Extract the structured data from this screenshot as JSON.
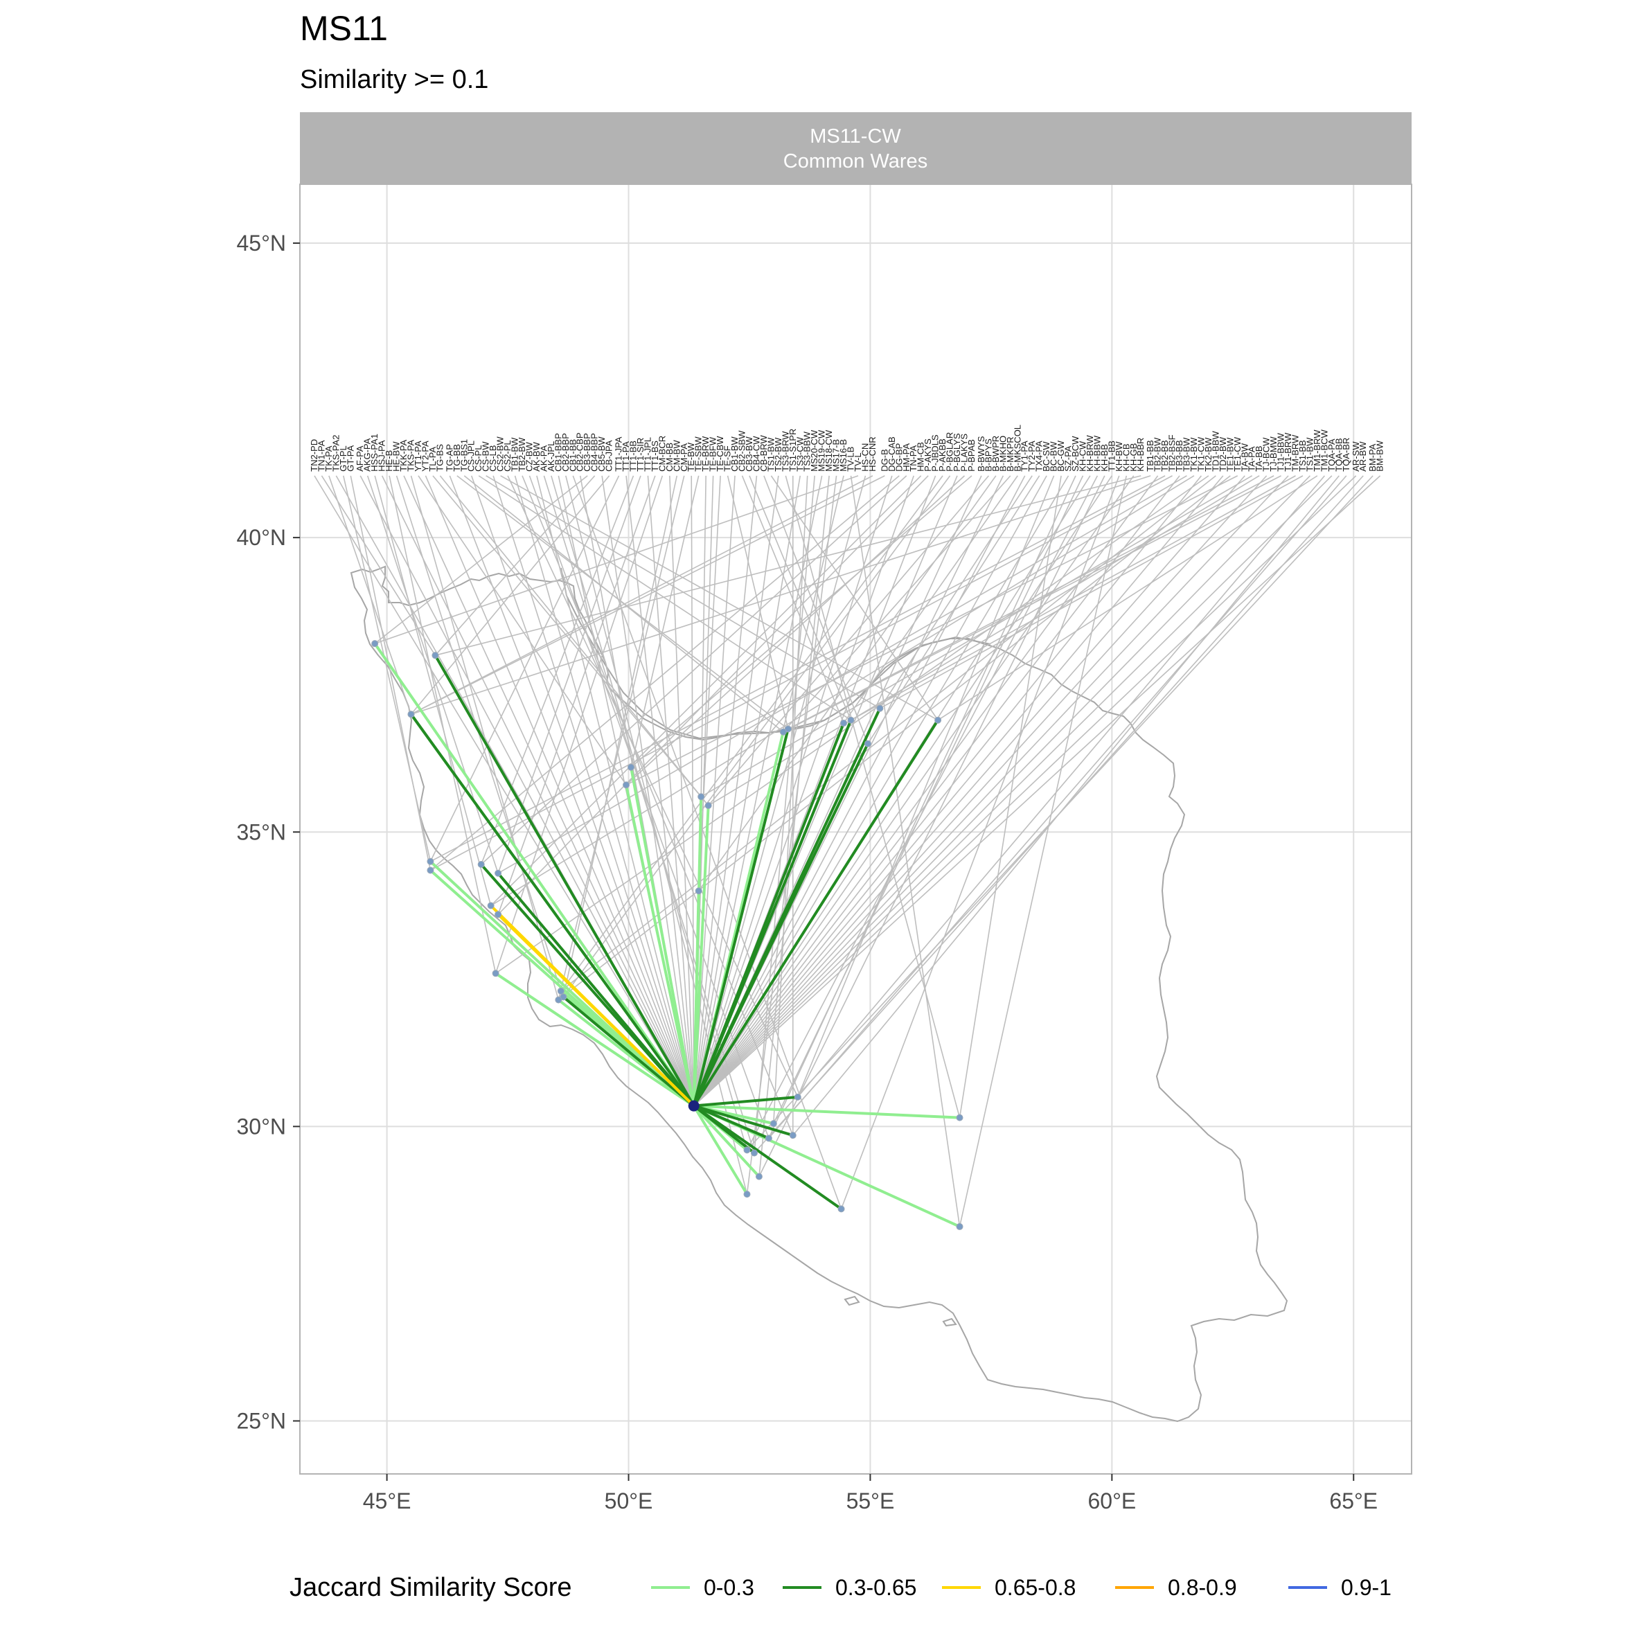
{
  "chart_data": {
    "type": "map",
    "title": "MS11",
    "subtitle": "Similarity >= 0.1",
    "facet": {
      "line1": "MS11-CW",
      "line2": "Common Wares"
    },
    "xlim": [
      43.2,
      66.2
    ],
    "ylim": [
      24.1,
      46.0
    ],
    "grid": true,
    "x_ticks": [
      {
        "value": 45,
        "label": "45°E"
      },
      {
        "value": 50,
        "label": "50°E"
      },
      {
        "value": 55,
        "label": "55°E"
      },
      {
        "value": 60,
        "label": "60°E"
      },
      {
        "value": 65,
        "label": "65°E"
      }
    ],
    "y_ticks": [
      {
        "value": 25,
        "label": "25°N"
      },
      {
        "value": 30,
        "label": "30°N"
      },
      {
        "value": 35,
        "label": "35°N"
      },
      {
        "value": 40,
        "label": "40°N"
      },
      {
        "value": 45,
        "label": "45°N"
      }
    ],
    "origin": {
      "lon": 51.35,
      "lat": 30.35,
      "color": "#1a237e"
    },
    "label_baseline_lat": 41.05,
    "legend": {
      "title": "Jaccard Similarity Score",
      "position": "bottom",
      "items": [
        {
          "label": "0-0.3",
          "color": "#90ee90"
        },
        {
          "label": "0.3-0.65",
          "color": "#228b22"
        },
        {
          "label": "0.65-0.8",
          "color": "#ffd700"
        },
        {
          "label": "0.8-0.9",
          "color": "#ffa500"
        },
        {
          "label": "0.9-1",
          "color": "#4169e1"
        }
      ]
    },
    "colors": {
      "0-0.3": "#90ee90",
      "0.3-0.65": "#228b22",
      "0.65-0.8": "#ffd700",
      "0.8-0.9": "#ffa500",
      "0.9-1": "#4169e1",
      "leader": "#bebebe",
      "border": "#a6a6a6",
      "strip": "#b3b3b3"
    },
    "links": [
      {
        "lon": 44.75,
        "lat": 38.2,
        "class": "0-0.3"
      },
      {
        "lon": 46.0,
        "lat": 38.0,
        "class": "0.3-0.65"
      },
      {
        "lon": 45.5,
        "lat": 37.0,
        "class": "0.3-0.65"
      },
      {
        "lon": 45.5,
        "lat": 37.0,
        "class": "0-0.3"
      },
      {
        "lon": 45.9,
        "lat": 34.5,
        "class": "0-0.3"
      },
      {
        "lon": 45.9,
        "lat": 34.35,
        "class": "0-0.3"
      },
      {
        "lon": 46.95,
        "lat": 34.45,
        "class": "0.3-0.65"
      },
      {
        "lon": 47.3,
        "lat": 34.3,
        "class": "0.3-0.65"
      },
      {
        "lon": 47.15,
        "lat": 33.75,
        "class": "0.65-0.8"
      },
      {
        "lon": 47.3,
        "lat": 33.6,
        "class": "0.65-0.8"
      },
      {
        "lon": 47.25,
        "lat": 32.6,
        "class": "0-0.3"
      },
      {
        "lon": 48.6,
        "lat": 32.3,
        "class": "0-0.3"
      },
      {
        "lon": 48.65,
        "lat": 32.2,
        "class": "0.3-0.65"
      },
      {
        "lon": 48.55,
        "lat": 32.15,
        "class": "0-0.3"
      },
      {
        "lon": 49.95,
        "lat": 35.8,
        "class": "0-0.3"
      },
      {
        "lon": 50.05,
        "lat": 36.1,
        "class": "0-0.3"
      },
      {
        "lon": 51.5,
        "lat": 35.6,
        "class": "0-0.3"
      },
      {
        "lon": 51.65,
        "lat": 35.45,
        "class": "0-0.3"
      },
      {
        "lon": 51.45,
        "lat": 34.0,
        "class": "0-0.3"
      },
      {
        "lon": 53.3,
        "lat": 36.75,
        "class": "0.3-0.65"
      },
      {
        "lon": 53.2,
        "lat": 36.7,
        "class": "0-0.3"
      },
      {
        "lon": 54.45,
        "lat": 36.85,
        "class": "0.3-0.65"
      },
      {
        "lon": 54.6,
        "lat": 36.9,
        "class": "0.3-0.65"
      },
      {
        "lon": 55.2,
        "lat": 37.1,
        "class": "0.3-0.65"
      },
      {
        "lon": 54.95,
        "lat": 36.5,
        "class": "0.3-0.65"
      },
      {
        "lon": 56.4,
        "lat": 36.9,
        "class": "0.3-0.65"
      },
      {
        "lon": 53.5,
        "lat": 30.5,
        "class": "0.3-0.65"
      },
      {
        "lon": 56.85,
        "lat": 30.15,
        "class": "0-0.3"
      },
      {
        "lon": 53.4,
        "lat": 29.85,
        "class": "0.3-0.65"
      },
      {
        "lon": 52.9,
        "lat": 29.8,
        "class": "0.3-0.65"
      },
      {
        "lon": 53.0,
        "lat": 30.05,
        "class": "0-0.3"
      },
      {
        "lon": 52.6,
        "lat": 29.55,
        "class": "0.3-0.65"
      },
      {
        "lon": 52.45,
        "lat": 29.6,
        "class": "0-0.3"
      },
      {
        "lon": 52.7,
        "lat": 29.15,
        "class": "0-0.3"
      },
      {
        "lon": 52.45,
        "lat": 28.85,
        "class": "0-0.3"
      },
      {
        "lon": 54.4,
        "lat": 28.6,
        "class": "0.3-0.65"
      },
      {
        "lon": 56.85,
        "lat": 28.3,
        "class": "0-0.3"
      }
    ],
    "site_labels": [
      {
        "text": "TN2-PD",
        "lon": 43.5
      },
      {
        "text": "TN1-PA",
        "lon": 43.65
      },
      {
        "text": "TK-PA",
        "lon": 43.8
      },
      {
        "text": "TKS-PA2",
        "lon": 43.95
      },
      {
        "text": "GT-PL",
        "lon": 44.1
      },
      {
        "text": "GT-PA",
        "lon": 44.25
      },
      {
        "text": "AF-PA",
        "lon": 44.45
      },
      {
        "text": "AKG-PA",
        "lon": 44.6
      },
      {
        "text": "HSS-PA1",
        "lon": 44.75
      },
      {
        "text": "HSJ-PA",
        "lon": 44.9
      },
      {
        "text": "HE-B",
        "lon": 45.05
      },
      {
        "text": "HE-BW",
        "lon": 45.2
      },
      {
        "text": "TKK-PA",
        "lon": 45.35
      },
      {
        "text": "TKS-PA",
        "lon": 45.5
      },
      {
        "text": "YT1-PA",
        "lon": 45.65
      },
      {
        "text": "YT2-PA",
        "lon": 45.8
      },
      {
        "text": "TL-PA",
        "lon": 45.95
      },
      {
        "text": "TG-BS",
        "lon": 46.1
      },
      {
        "text": "TG-AP",
        "lon": 46.3
      },
      {
        "text": "TG-BB",
        "lon": 46.45
      },
      {
        "text": "TG-BS1",
        "lon": 46.6
      },
      {
        "text": "CS-JPL",
        "lon": 46.75
      },
      {
        "text": "CS-PL",
        "lon": 46.9
      },
      {
        "text": "CS-BW",
        "lon": 47.05
      },
      {
        "text": "CS-LB",
        "lon": 47.2
      },
      {
        "text": "CS2-BW",
        "lon": 47.35
      },
      {
        "text": "CS2-PL",
        "lon": 47.5
      },
      {
        "text": "TB1-BW",
        "lon": 47.65
      },
      {
        "text": "TB2-BW",
        "lon": 47.8
      },
      {
        "text": "CZ-BW",
        "lon": 47.95
      },
      {
        "text": "AK-BW",
        "lon": 48.1
      },
      {
        "text": "AK-PA",
        "lon": 48.25
      },
      {
        "text": "AK-JPL",
        "lon": 48.4
      },
      {
        "text": "CB1-BBP",
        "lon": 48.55
      },
      {
        "text": "CB2-BBP",
        "lon": 48.7
      },
      {
        "text": "CB1-BB",
        "lon": 48.85
      },
      {
        "text": "CB2-CBP",
        "lon": 49.0
      },
      {
        "text": "CB3-BBP",
        "lon": 49.15
      },
      {
        "text": "CB4-BBP",
        "lon": 49.3
      },
      {
        "text": "CB5-BW",
        "lon": 49.45
      },
      {
        "text": "CB-JPA",
        "lon": 49.6
      },
      {
        "text": "TT1-JPA",
        "lon": 49.8
      },
      {
        "text": "TT1-PA",
        "lon": 49.95
      },
      {
        "text": "TT1-BB",
        "lon": 50.1
      },
      {
        "text": "TT1-SIR",
        "lon": 50.25
      },
      {
        "text": "TT1-JPL",
        "lon": 50.4
      },
      {
        "text": "TT1-BS",
        "lon": 50.55
      },
      {
        "text": "CM-BCR",
        "lon": 50.7
      },
      {
        "text": "CM-BB",
        "lon": 50.85
      },
      {
        "text": "CM-BW",
        "lon": 51.0
      },
      {
        "text": "CM-PA",
        "lon": 51.15
      },
      {
        "text": "TE-BW",
        "lon": 51.3
      },
      {
        "text": "TE-SBW",
        "lon": 51.45
      },
      {
        "text": "TE-BRW",
        "lon": 51.6
      },
      {
        "text": "TE-BFW",
        "lon": 51.75
      },
      {
        "text": "TE-CBW",
        "lon": 51.9
      },
      {
        "text": "TE-SF",
        "lon": 52.05
      },
      {
        "text": "CB1-BW",
        "lon": 52.2
      },
      {
        "text": "CB2-SBW",
        "lon": 52.35
      },
      {
        "text": "CB3-BW",
        "lon": 52.5
      },
      {
        "text": "CB4-CW",
        "lon": 52.65
      },
      {
        "text": "CB-BRW",
        "lon": 52.8
      },
      {
        "text": "TS1-BW",
        "lon": 52.95
      },
      {
        "text": "TS2-BW",
        "lon": 53.1
      },
      {
        "text": "TS3-BRW",
        "lon": 53.25
      },
      {
        "text": "TS1-S1PR",
        "lon": 53.4
      },
      {
        "text": "TS3-CW",
        "lon": 53.55
      },
      {
        "text": "TS3-BBW",
        "lon": 53.7
      },
      {
        "text": "MS20-CW",
        "lon": 53.85
      },
      {
        "text": "MS19-CW",
        "lon": 54.0
      },
      {
        "text": "MS18-CW",
        "lon": 54.15
      },
      {
        "text": "MS17-B",
        "lon": 54.3
      },
      {
        "text": "MS16-B",
        "lon": 54.45
      },
      {
        "text": "TV-LB",
        "lon": 54.6
      },
      {
        "text": "TV-L",
        "lon": 54.75
      },
      {
        "text": "HS-CN",
        "lon": 54.9
      },
      {
        "text": "HS-CNR",
        "lon": 55.05
      },
      {
        "text": "DG-B",
        "lon": 55.3
      },
      {
        "text": "DG-CAB",
        "lon": 55.45
      },
      {
        "text": "DG-BP",
        "lon": 55.6
      },
      {
        "text": "HM-PA",
        "lon": 55.75
      },
      {
        "text": "TN-PA",
        "lon": 55.9
      },
      {
        "text": "HM-CB",
        "lon": 56.05
      },
      {
        "text": "P-AKYS",
        "lon": 56.2
      },
      {
        "text": "P-JBDLS",
        "lon": 56.35
      },
      {
        "text": "P-AKBB",
        "lon": 56.5
      },
      {
        "text": "P-BGLAR",
        "lon": 56.65
      },
      {
        "text": "P-BGLYS",
        "lon": 56.8
      },
      {
        "text": "P-LAKYS",
        "lon": 56.95
      },
      {
        "text": "P-BPAB",
        "lon": 57.1
      },
      {
        "text": "B-BWYS",
        "lon": 57.3
      },
      {
        "text": "B-BPYS",
        "lon": 57.45
      },
      {
        "text": "B-BWPR",
        "lon": 57.6
      },
      {
        "text": "B-MKHO",
        "lon": 57.75
      },
      {
        "text": "B-MKPR",
        "lon": 57.9
      },
      {
        "text": "B-MKSCOL",
        "lon": 58.05
      },
      {
        "text": "TY1-PA",
        "lon": 58.2
      },
      {
        "text": "TY2-PA",
        "lon": 58.35
      },
      {
        "text": "TX4-PA",
        "lon": 58.5
      },
      {
        "text": "BC-SW",
        "lon": 58.65
      },
      {
        "text": "BC-BW",
        "lon": 58.8
      },
      {
        "text": "BC-GW",
        "lon": 58.95
      },
      {
        "text": "SZ-PA",
        "lon": 59.1
      },
      {
        "text": "SZ-BCW",
        "lon": 59.25
      },
      {
        "text": "KH-CW",
        "lon": 59.4
      },
      {
        "text": "KH-BRW",
        "lon": 59.55
      },
      {
        "text": "KH-BBW",
        "lon": 59.7
      },
      {
        "text": "KH-BB",
        "lon": 59.85
      },
      {
        "text": "TT1-BB",
        "lon": 60.0
      },
      {
        "text": "KH-BW",
        "lon": 60.15
      },
      {
        "text": "KH-CB",
        "lon": 60.3
      },
      {
        "text": "KH-GB",
        "lon": 60.45
      },
      {
        "text": "KH-BBR",
        "lon": 60.6
      },
      {
        "text": "TB1-BB",
        "lon": 60.8
      },
      {
        "text": "TB2-BW",
        "lon": 60.95
      },
      {
        "text": "TB2-BB",
        "lon": 61.1
      },
      {
        "text": "TB2-BSF",
        "lon": 61.25
      },
      {
        "text": "TB3-BB",
        "lon": 61.4
      },
      {
        "text": "TB3-BW",
        "lon": 61.55
      },
      {
        "text": "TK1-BW",
        "lon": 61.7
      },
      {
        "text": "TK1-CW",
        "lon": 61.85
      },
      {
        "text": "TK2-BW",
        "lon": 62.0
      },
      {
        "text": "TD1-BBW",
        "lon": 62.15
      },
      {
        "text": "TD2-BW",
        "lon": 62.3
      },
      {
        "text": "TE1-BW",
        "lon": 62.45
      },
      {
        "text": "TE1-CW",
        "lon": 62.6
      },
      {
        "text": "TA-BW",
        "lon": 62.75
      },
      {
        "text": "TA-PA",
        "lon": 62.9
      },
      {
        "text": "TA-BB",
        "lon": 63.05
      },
      {
        "text": "TJ-BCW",
        "lon": 63.2
      },
      {
        "text": "TJ-BMW",
        "lon": 63.35
      },
      {
        "text": "TJ1-BBW",
        "lon": 63.5
      },
      {
        "text": "TJ1-BRW",
        "lon": 63.65
      },
      {
        "text": "TM-BRW",
        "lon": 63.8
      },
      {
        "text": "TS1-BB",
        "lon": 63.95
      },
      {
        "text": "TS1-BW",
        "lon": 64.1
      },
      {
        "text": "TM1-BRW",
        "lon": 64.25
      },
      {
        "text": "TM1-BCW",
        "lon": 64.4
      },
      {
        "text": "TQA-PA",
        "lon": 64.55
      },
      {
        "text": "TQA-BB",
        "lon": 64.7
      },
      {
        "text": "TQA-BR",
        "lon": 64.85
      },
      {
        "text": "AR-SW",
        "lon": 65.05
      },
      {
        "text": "AR-BW",
        "lon": 65.2
      },
      {
        "text": "BM-PA",
        "lon": 65.4
      },
      {
        "text": "BM-BW",
        "lon": 65.55
      }
    ]
  }
}
